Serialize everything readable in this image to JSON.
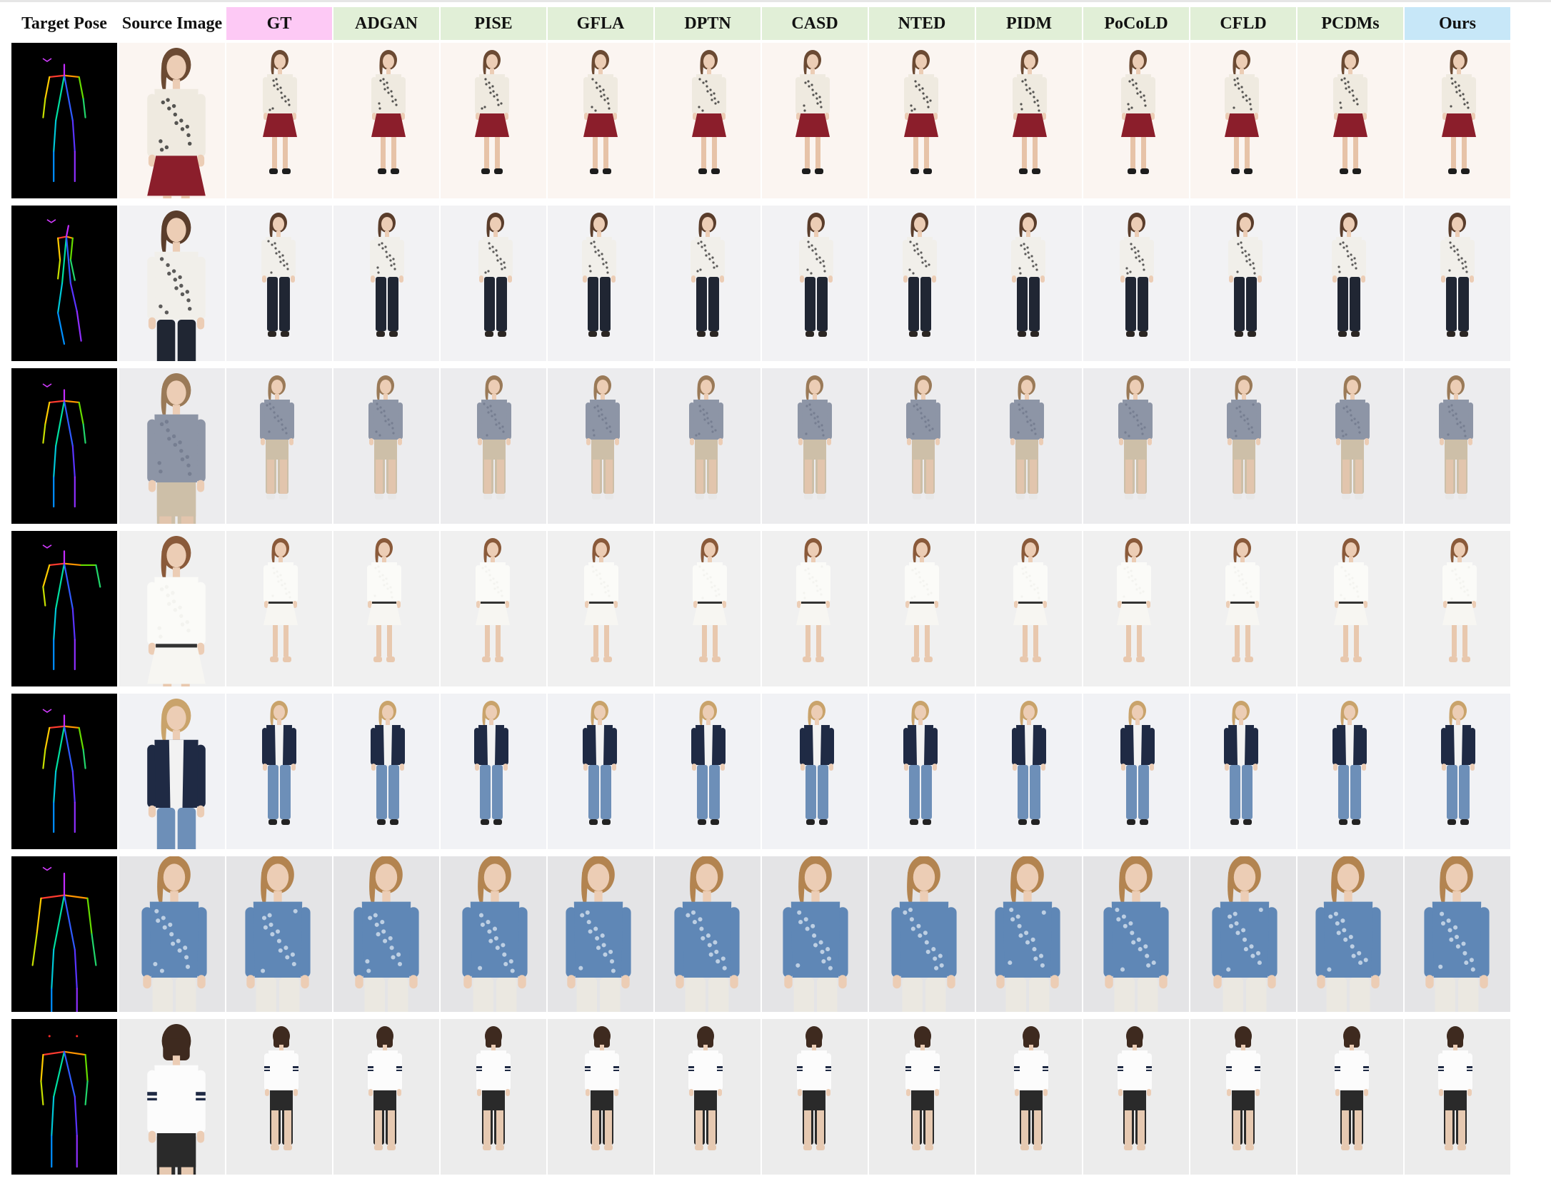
{
  "headers": [
    {
      "label": "Target Pose",
      "group": "none"
    },
    {
      "label": "Source Image",
      "group": "none"
    },
    {
      "label": "GT",
      "group": "pink"
    },
    {
      "label": "ADGAN",
      "group": "green"
    },
    {
      "label": "PISE",
      "group": "green"
    },
    {
      "label": "GFLA",
      "group": "green"
    },
    {
      "label": "DPTN",
      "group": "green"
    },
    {
      "label": "CASD",
      "group": "green"
    },
    {
      "label": "NTED",
      "group": "green"
    },
    {
      "label": "PIDM",
      "group": "green"
    },
    {
      "label": "PoCoLD",
      "group": "green"
    },
    {
      "label": "CFLD",
      "group": "green"
    },
    {
      "label": "PCDMs",
      "group": "green"
    },
    {
      "label": "Ours",
      "group": "blue"
    }
  ],
  "rows": [
    {
      "pose": "front-standing",
      "top": "#efeae0",
      "topPattern": "#222222",
      "bottom": "#8b1e2b",
      "legs": "#e7c3a8",
      "shoes": "#1c1c1c",
      "bg": "#fbf5f1",
      "hair": "#6b4a33",
      "skirt": true,
      "back": false,
      "view": "front"
    },
    {
      "pose": "side-walking",
      "top": "#f1efea",
      "topPattern": "#2a2a2a",
      "bottom": "#202633",
      "legs": "#202633",
      "shoes": "#2b2623",
      "bg": "#f2f2f4",
      "hair": "#5a3d2b",
      "skirt": false,
      "back": false,
      "view": "side"
    },
    {
      "pose": "front-standing",
      "top": "#8d95a6",
      "topPattern": "#6f7789",
      "bottom": "#cdbfa8",
      "legs": "#e2c5ad",
      "shoes": "#e8e8e8",
      "bg": "#ececee",
      "hair": "#9a7a58",
      "skirt": false,
      "back": false,
      "view": "front"
    },
    {
      "pose": "front-hand-up",
      "top": "#fbfbf8",
      "topPattern": "#f0f0ec",
      "bottom": "#f7f6f2",
      "legs": "#e8c8ae",
      "shoes": "#e8c8ae",
      "bg": "#f0f0f0",
      "hair": "#8a5a3a",
      "skirt": true,
      "back": false,
      "view": "front"
    },
    {
      "pose": "front-standing",
      "top": "#1f2a44",
      "topPattern": "#e9e9ea",
      "bottom": "#6d8fb8",
      "legs": "#6d8fb8",
      "shoes": "#222222",
      "bg": "#f1f2f5",
      "hair": "#c9a36b",
      "skirt": false,
      "back": false,
      "view": "front"
    },
    {
      "pose": "upper-body",
      "top": "#5f87b6",
      "topPattern": "#dce7f2",
      "bottom": "#ebe8e1",
      "legs": "#ebe8e1",
      "shoes": "#ebe8e1",
      "bg": "#e4e4e6",
      "hair": "#b38450",
      "skirt": false,
      "back": false,
      "view": "close"
    },
    {
      "pose": "back-view",
      "top": "#fcfcfc",
      "topPattern": "#1f2a44",
      "bottom": "#2a2a2a",
      "legs": "#e6c9b1",
      "shoes": "#e6c9b1",
      "bg": "#ececec",
      "hair": "#3e2a1f",
      "skirt": false,
      "back": true,
      "view": "back"
    }
  ]
}
